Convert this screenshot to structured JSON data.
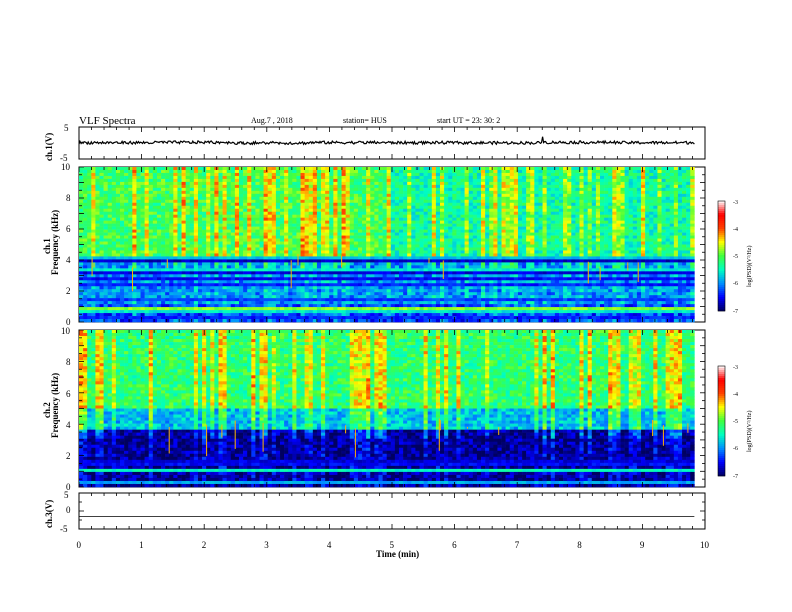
{
  "header": {
    "title": "VLF Spectra",
    "date": "Aug.7 , 2018",
    "station": "station= HUS",
    "start": "start UT = 23: 30: 2"
  },
  "chart_data": [
    {
      "type": "line",
      "panel": "ch1-waveform",
      "ylabel": "ch.1(V)",
      "ylim": [
        -5,
        5
      ],
      "yticks": [
        "5",
        "-5"
      ],
      "xlim": [
        0,
        10
      ],
      "series": [
        {
          "values": [
            0.1,
            0.2,
            0.0,
            0.15,
            0.1,
            0.05,
            0.2,
            0.1
          ]
        }
      ]
    },
    {
      "type": "heatmap",
      "panel": "ch1-spectrogram",
      "ylabel": "Frequency (kHz)",
      "channel_label": "ch.1",
      "ylim": [
        0,
        10
      ],
      "yticks": [
        "10",
        "8",
        "6",
        "4",
        "2",
        "0"
      ],
      "xlim": [
        0,
        10
      ],
      "xrange_data": [
        0,
        9.83
      ],
      "colorbar": {
        "label": "log(PSD)(V²/Hz)",
        "range": [
          -7,
          -3
        ],
        "ticks": [
          "-3",
          "-4",
          "-5",
          "-6",
          "-7"
        ],
        "colormap": [
          "#000060",
          "#0000ff",
          "#0090ff",
          "#00ffc0",
          "#40ff40",
          "#ffff00",
          "#ff4000",
          "#ff0000",
          "#ffffff"
        ]
      },
      "bands": [
        {
          "y": 0.3,
          "level": -6.4
        },
        {
          "y": 0.6,
          "level": -5.6
        },
        {
          "y": 0.85,
          "level": -4.8
        },
        {
          "y": 1.5,
          "level": -6.3
        },
        {
          "y": 2.4,
          "level": -6.4
        },
        {
          "y": 2.8,
          "level": -6.5
        },
        {
          "y": 3.1,
          "level": -6.6
        },
        {
          "y": 3.4,
          "level": -5.6
        },
        {
          "y": 3.9,
          "level": -6.7
        },
        {
          "y": 4.2,
          "level": -5.8
        }
      ]
    },
    {
      "type": "heatmap",
      "panel": "ch2-spectrogram",
      "ylabel": "Frequency (kHz)",
      "channel_label": "ch.2",
      "ylim": [
        0,
        10
      ],
      "yticks": [
        "10",
        "8",
        "6",
        "4",
        "2",
        "0"
      ],
      "xlim": [
        0,
        10
      ],
      "xrange_data": [
        0,
        9.83
      ],
      "colorbar": {
        "label": "log(PSD)(V²/Hz)",
        "range": [
          -7,
          -3
        ],
        "ticks": [
          "-3",
          "-4",
          "-5",
          "-6",
          "-7"
        ],
        "colormap": [
          "#000060",
          "#0000ff",
          "#0090ff",
          "#00ffc0",
          "#40ff40",
          "#ffff00",
          "#ff4000",
          "#ff0000",
          "#ffffff"
        ]
      },
      "bands": [
        {
          "y": 0.3,
          "level": -5.9
        },
        {
          "y": 1.0,
          "level": -5.5
        },
        {
          "y": 1.4,
          "level": -6.5
        },
        {
          "y": 1.7,
          "level": -6.6
        }
      ]
    },
    {
      "type": "line",
      "panel": "ch3-waveform",
      "ylabel": "ch.3(V)",
      "ylim": [
        -5,
        5
      ],
      "yticks": [
        "5",
        "0",
        "-5"
      ],
      "xlim": [
        0,
        10
      ],
      "xlabel": "Time (min)",
      "xticks": [
        "0",
        "1",
        "2",
        "3",
        "4",
        "5",
        "6",
        "7",
        "8",
        "9",
        "10"
      ],
      "series": [
        {
          "values": [
            -1.5,
            -1.5
          ]
        }
      ]
    }
  ]
}
